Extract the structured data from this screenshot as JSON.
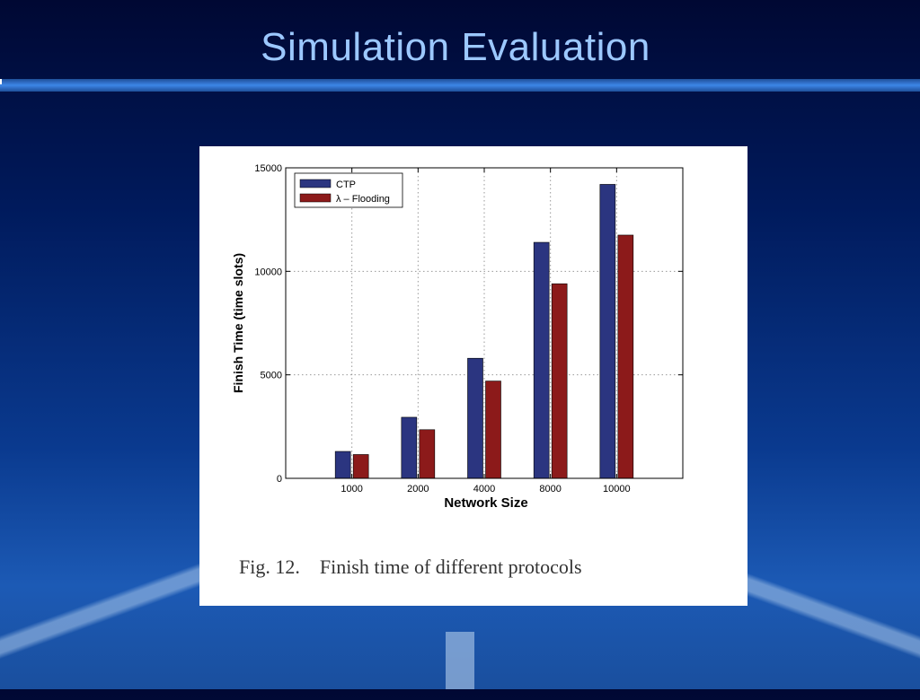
{
  "slide": {
    "title": "Simulation Evaluation",
    "caption": "Fig. 12.    Finish time of different protocols"
  },
  "colors": {
    "ctp": "#2b3580",
    "flooding": "#8c1a1a",
    "title": "#9cc8ff"
  },
  "chart_data": {
    "type": "bar",
    "categories": [
      "1000",
      "2000",
      "4000",
      "8000",
      "10000"
    ],
    "series": [
      {
        "name": "CTP",
        "values": [
          1300,
          2950,
          5800,
          11400,
          14200
        ]
      },
      {
        "name": "λ – Flooding",
        "values": [
          1150,
          2350,
          4700,
          9400,
          11750
        ]
      }
    ],
    "xlabel": "Network Size",
    "ylabel": "Finish Time (time slots)",
    "ylim": [
      0,
      15000
    ],
    "yticks": [
      "0",
      "5000",
      "10000",
      "15000"
    ],
    "grid": true,
    "legend": "top-left"
  }
}
